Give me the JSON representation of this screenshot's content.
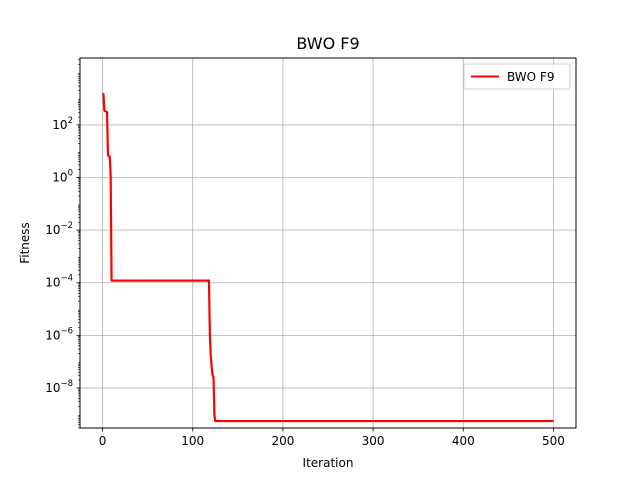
{
  "chart_data": {
    "type": "line",
    "title": "BWO F9",
    "xlabel": "Iteration",
    "ylabel": "Fitness",
    "x_scale": "linear",
    "y_scale": "log",
    "xlim": [
      -25,
      525
    ],
    "ylim": [
      3e-10,
      35000.0
    ],
    "x_ticks": [
      {
        "value": 0,
        "label": "0"
      },
      {
        "value": 100,
        "label": "100"
      },
      {
        "value": 200,
        "label": "200"
      },
      {
        "value": 300,
        "label": "300"
      },
      {
        "value": 400,
        "label": "400"
      },
      {
        "value": 500,
        "label": "500"
      }
    ],
    "y_ticks": [
      {
        "exp": 2,
        "label_base": "10",
        "label_exp": "2"
      },
      {
        "exp": 0,
        "label_base": "10",
        "label_exp": "0"
      },
      {
        "exp": -2,
        "label_base": "10",
        "label_exp": "−2"
      },
      {
        "exp": -4,
        "label_base": "10",
        "label_exp": "−4"
      },
      {
        "exp": -6,
        "label_base": "10",
        "label_exp": "−6"
      },
      {
        "exp": -8,
        "label_base": "10",
        "label_exp": "−8"
      }
    ],
    "grid": true,
    "legend_position": "top-right",
    "series": [
      {
        "name": "BWO F9",
        "color": "#ff0000",
        "x": [
          0,
          1,
          2,
          3,
          5,
          6,
          7,
          8,
          9,
          10,
          118,
          119,
          120,
          121,
          122,
          123,
          124,
          125,
          500
        ],
        "y": [
          1500,
          1500,
          350,
          330,
          310,
          7,
          6.5,
          6.3,
          1.1,
          0.00012,
          0.00012,
          1e-06,
          1.7e-07,
          6e-08,
          3e-08,
          2.6e-08,
          1e-09,
          5.5e-10,
          5.5e-10
        ]
      }
    ]
  }
}
